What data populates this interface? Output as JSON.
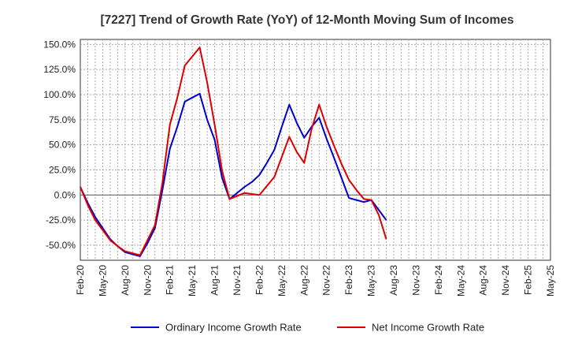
{
  "chart_data": {
    "type": "line",
    "title": "[7227]  Trend of Growth Rate (YoY) of 12-Month Moving Sum of Incomes",
    "xlabel": "",
    "ylabel": "",
    "ylim": [
      -65,
      155
    ],
    "y_ticks": [
      150.0,
      125.0,
      100.0,
      75.0,
      50.0,
      25.0,
      0.0,
      -25.0,
      -50.0
    ],
    "y_tick_labels": [
      "150.0%",
      "125.0%",
      "100.0%",
      "75.0%",
      "50.0%",
      "25.0%",
      "0.0%",
      "-25.0%",
      "-50.0%"
    ],
    "x_tick_labels": [
      "Feb-20",
      "May-20",
      "Aug-20",
      "Nov-20",
      "Feb-21",
      "May-21",
      "Aug-21",
      "Nov-21",
      "Feb-22",
      "May-22",
      "Aug-22",
      "Nov-22",
      "Feb-23",
      "May-23",
      "Aug-23",
      "Nov-23",
      "Feb-24",
      "May-24",
      "Aug-24",
      "Nov-24",
      "Feb-25",
      "May-25"
    ],
    "grid": true,
    "legend_position": "bottom",
    "colors": {
      "ordinary": "#0000cc",
      "net": "#dd0000",
      "grid": "#aaaaaa",
      "axis": "#333333"
    },
    "series": [
      {
        "name": "Ordinary Income Growth Rate",
        "color": "#0000cc",
        "values": [
          8,
          -8,
          -22,
          -33,
          -44,
          -51,
          -57,
          -59,
          -61,
          -48,
          -33,
          5,
          46,
          68,
          93,
          97,
          101,
          75,
          55,
          17,
          -4,
          2,
          8,
          13,
          20,
          32,
          45,
          68,
          90,
          72,
          57,
          68,
          77,
          56,
          37,
          17,
          -3,
          -5,
          -7,
          -5,
          -15,
          -25
        ]
      },
      {
        "name": "Net Income Growth Rate",
        "color": "#dd0000",
        "values": [
          8,
          -10,
          -25,
          -35,
          -45,
          -51,
          -56,
          -58,
          -60,
          -45,
          -30,
          12,
          70,
          97,
          129,
          138,
          147,
          112,
          70,
          24,
          -4,
          -1,
          2,
          1,
          0,
          9,
          18,
          38,
          58,
          43,
          32,
          66,
          90,
          68,
          49,
          31,
          15,
          5,
          -4,
          -5,
          -20,
          -44
        ]
      }
    ]
  }
}
